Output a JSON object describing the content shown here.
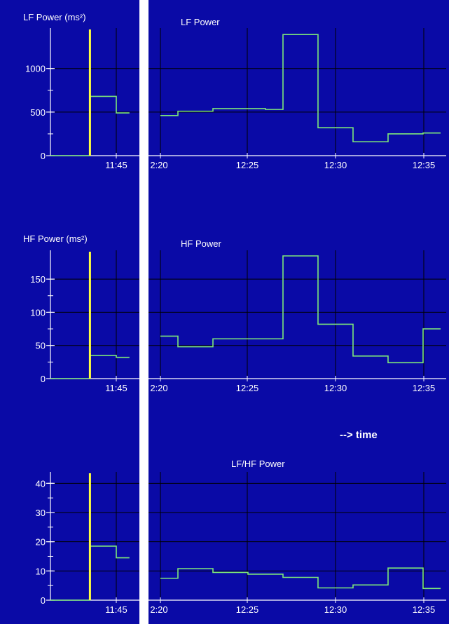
{
  "colors": {
    "background": "#0a0aa6",
    "grid": "#000000",
    "trace": "#7ee87a",
    "event_marker": "#ffff40",
    "text": "#ffffff",
    "separator": "#ffffff"
  },
  "annotation": "--> time",
  "chart_data": [
    {
      "type": "line",
      "step": true,
      "left_panel": {
        "title": "LF Power (ms²)",
        "ylim": [
          0,
          1400
        ],
        "yticks": [
          0,
          500,
          1000
        ],
        "ytick_labels": [
          "0",
          "500",
          "1000"
        ],
        "xtick_labels": [
          "11:45"
        ],
        "event_marker_at": "11:43",
        "x": [
          "11:40",
          "11:43",
          "11:45",
          "11:46"
        ],
        "y": [
          0,
          680,
          490,
          490
        ]
      },
      "right_panel": {
        "title": "LF Power",
        "ylim": [
          0,
          1400
        ],
        "xtick_labels": [
          "2:20",
          "12:25",
          "12:30",
          "12:35"
        ],
        "x": [
          "12:20",
          "12:21",
          "12:23",
          "12:26",
          "12:27",
          "12:28",
          "12:29",
          "12:31",
          "12:33",
          "12:35",
          "12:36"
        ],
        "y": [
          460,
          510,
          540,
          530,
          1390,
          1390,
          320,
          160,
          250,
          260,
          260
        ]
      }
    },
    {
      "type": "line",
      "step": true,
      "left_panel": {
        "title": "HF Power (ms²)",
        "ylim": [
          0,
          185
        ],
        "yticks": [
          0,
          50,
          100,
          150
        ],
        "ytick_labels": [
          "0",
          "50",
          "100",
          "150"
        ],
        "xtick_labels": [
          "11:45"
        ],
        "event_marker_at": "11:43",
        "x": [
          "11:40",
          "11:43",
          "11:45",
          "11:46"
        ],
        "y": [
          0,
          35,
          32,
          32
        ]
      },
      "right_panel": {
        "title": "HF Power",
        "ylim": [
          0,
          185
        ],
        "xtick_labels": [
          "2:20",
          "12:25",
          "12:30",
          "12:35"
        ],
        "x": [
          "12:20",
          "12:21",
          "12:23",
          "12:27",
          "12:29",
          "12:31",
          "12:33",
          "12:35",
          "12:36"
        ],
        "y": [
          64,
          48,
          60,
          185,
          82,
          34,
          24,
          75,
          75
        ]
      }
    },
    {
      "type": "line",
      "step": true,
      "left_panel": {
        "title": "",
        "ylim": [
          0,
          42
        ],
        "yticks": [
          0,
          10,
          20,
          30,
          40
        ],
        "ytick_labels": [
          "0",
          "10",
          "20",
          "30",
          "40"
        ],
        "xtick_labels": [
          "11:45"
        ],
        "event_marker_at": "11:43",
        "x": [
          "11:40",
          "11:43",
          "11:45",
          "11:46"
        ],
        "y": [
          0,
          18.5,
          14.5,
          14.5
        ]
      },
      "right_panel": {
        "title": "LF/HF Power",
        "ylim": [
          0,
          42
        ],
        "xtick_labels": [
          "2:20",
          "12:25",
          "12:30",
          "12:35"
        ],
        "x": [
          "12:20",
          "12:21",
          "12:23",
          "12:25",
          "12:27",
          "12:29",
          "12:31",
          "12:33",
          "12:35",
          "12:36"
        ],
        "y": [
          7.5,
          10.8,
          9.5,
          8.9,
          7.8,
          4.2,
          5.2,
          11.0,
          4.0,
          4.0
        ]
      }
    }
  ]
}
